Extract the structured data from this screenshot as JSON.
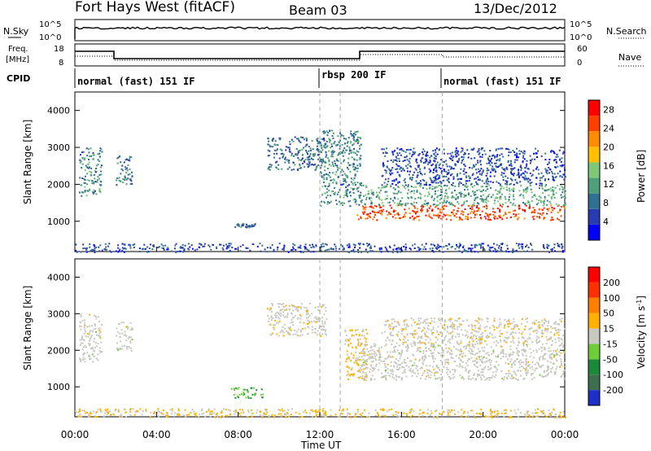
{
  "header": {
    "station": "Fort Hays West (fitACF)",
    "beam": "Beam 03",
    "date": "13/Dec/2012"
  },
  "top_panels": {
    "nsky_label": "N.Sky",
    "nsky_tick_high": "10^5",
    "nsky_tick_low": "10^0",
    "nsearch_tick_high": "10^5",
    "nsearch_tick_low": "10^0",
    "nsearch_label": "N.Search",
    "freq_label": "Freq.",
    "freq_unit": "[MHz]",
    "freq_tick_high": "18",
    "freq_tick_low": "8",
    "nave_tick_high": "60",
    "nave_tick_low": "0",
    "nave_label": "Nave",
    "cpid_label": "CPID",
    "cpid_segments": [
      {
        "label": "normal (fast) 151 IF",
        "start_hour": 0
      },
      {
        "label": "rbsp 200 IF",
        "start_hour": 12
      },
      {
        "label": "normal (fast) 151 IF",
        "start_hour": 18
      }
    ]
  },
  "colors": {
    "power": [
      "#0000ff",
      "#2a3ab0",
      "#2f6f8f",
      "#4fa07a",
      "#7ec87a",
      "#ffc000",
      "#ff8c00",
      "#ff4000",
      "#ff0000"
    ],
    "velocity": [
      "#1e2fc8",
      "#3d6f4f",
      "#1a8a3a",
      "#6ecc3a",
      "#c8c8c0",
      "#ffb000",
      "#ff8000",
      "#ff3000",
      "#ff0000"
    ]
  },
  "chart_data": [
    {
      "type": "heatmap",
      "name": "power",
      "ylabel": "Slant Range [km]",
      "ylim": [
        180,
        4500
      ],
      "yticks": [
        "1000",
        "2000",
        "3000",
        "4000"
      ],
      "xticks": [
        "00:00",
        "04:00",
        "08:00",
        "12:00",
        "16:00",
        "20:00",
        "00:00"
      ],
      "xlim_hours": [
        0,
        24
      ],
      "colorbar_label": "Power [dB]",
      "colorbar_ticks": [
        "4",
        "8",
        "12",
        "16",
        "20",
        "24",
        "28"
      ],
      "colorbar_range": [
        0,
        30
      ],
      "regions": [
        {
          "t0": 0.2,
          "t1": 1.3,
          "r0": 1700,
          "r1": 3000,
          "v": 10
        },
        {
          "t0": 2.0,
          "t1": 2.8,
          "r0": 2000,
          "r1": 2800,
          "v": 9
        },
        {
          "t0": 7.8,
          "t1": 8.8,
          "r0": 850,
          "r1": 950,
          "v": 8
        },
        {
          "t0": 9.4,
          "t1": 12.3,
          "r0": 2400,
          "r1": 3300,
          "v": 8
        },
        {
          "t0": 12.0,
          "t1": 14.0,
          "r0": 1400,
          "r1": 3500,
          "v": 10
        },
        {
          "t0": 13.8,
          "t1": 24.0,
          "r0": 1050,
          "r1": 1450,
          "v": 25
        },
        {
          "t0": 14.0,
          "t1": 24.0,
          "r0": 1450,
          "r1": 2000,
          "v": 12
        },
        {
          "t0": 15.0,
          "t1": 24.0,
          "r0": 2000,
          "r1": 3000,
          "v": 6
        },
        {
          "t0": 0.0,
          "t1": 24.0,
          "r0": 180,
          "r1": 420,
          "v": 6
        }
      ]
    },
    {
      "type": "heatmap",
      "name": "velocity",
      "ylabel": "Slant Range [km]",
      "ylim": [
        180,
        4500
      ],
      "yticks": [
        "1000",
        "2000",
        "3000",
        "4000"
      ],
      "xticks": [
        "00:00",
        "04:00",
        "08:00",
        "12:00",
        "16:00",
        "20:00",
        "00:00"
      ],
      "xlim_hours": [
        0,
        24
      ],
      "xlabel": "Time UT",
      "colorbar_label": "Velocity [m s",
      "colorbar_label_sup": "-1",
      "colorbar_ticks": [
        "200",
        "100",
        "50",
        "15",
        "-15",
        "-50",
        "-100",
        "-200"
      ],
      "colorbar_range": [
        -250,
        250
      ],
      "regions": [
        {
          "t0": 0.2,
          "t1": 1.3,
          "r0": 1700,
          "r1": 3000,
          "v": 0
        },
        {
          "t0": 2.0,
          "t1": 2.8,
          "r0": 2000,
          "r1": 2800,
          "v": 0
        },
        {
          "t0": 7.6,
          "t1": 9.2,
          "r0": 700,
          "r1": 1000,
          "v": -80
        },
        {
          "t0": 9.4,
          "t1": 12.3,
          "r0": 2400,
          "r1": 3300,
          "v": 5
        },
        {
          "t0": 13.2,
          "t1": 14.3,
          "r0": 1200,
          "r1": 2600,
          "v": 35
        },
        {
          "t0": 14.0,
          "t1": 24.0,
          "r0": 1200,
          "r1": 2200,
          "v": 0
        },
        {
          "t0": 15.0,
          "t1": 24.0,
          "r0": 2200,
          "r1": 2900,
          "v": 10
        },
        {
          "t0": 0.0,
          "t1": 24.0,
          "r0": 180,
          "r1": 420,
          "v": 30
        }
      ]
    }
  ]
}
